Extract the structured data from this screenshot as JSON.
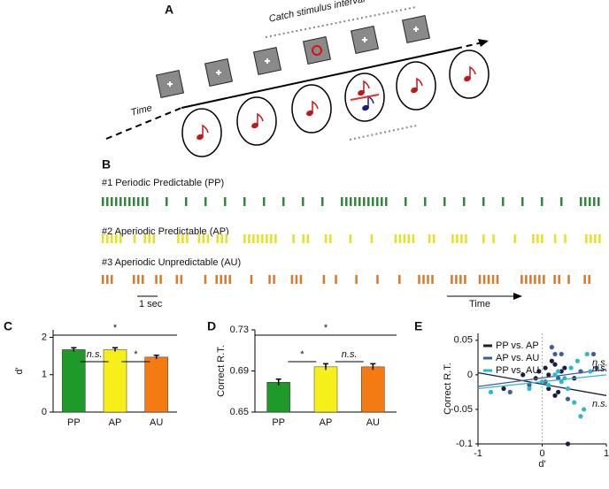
{
  "panel_labels": [
    "A",
    "B",
    "C",
    "D",
    "E"
  ],
  "panel_a": {
    "catch_label": "Catch stimulus interval",
    "time_label": "Time"
  },
  "panel_b": {
    "rows": [
      "#1 Periodic Predictable (PP)",
      "#2 Aperiodic Predictable (AP)",
      "#3 Aperiodic Unpredictable (AU)"
    ],
    "scale_label": "1 sec",
    "time_label": "Time"
  },
  "chart_data": [
    {
      "type": "bar",
      "ylabel": "d′",
      "categories": [
        "PP",
        "AP",
        "AU"
      ],
      "values": [
        1.67,
        1.67,
        1.47
      ],
      "errors": [
        0.05,
        0.05,
        0.05
      ],
      "colors": [
        "#1f9a2a",
        "#f7ef1a",
        "#f47a12"
      ],
      "ylim": [
        0,
        2.2
      ],
      "yticks": [
        0,
        1,
        2
      ],
      "annotations": [
        {
          "text": "*",
          "from": "PP",
          "to": "AU"
        },
        {
          "text": "n.s.",
          "from": "PP",
          "to": "AP"
        },
        {
          "text": "*",
          "from": "AP",
          "to": "AU"
        }
      ]
    },
    {
      "type": "bar",
      "ylabel": "Correct R.T.",
      "categories": [
        "PP",
        "AP",
        "AU"
      ],
      "values": [
        0.679,
        0.694,
        0.694
      ],
      "errors": [
        0.003,
        0.003,
        0.003
      ],
      "colors": [
        "#1f9a2a",
        "#f7ef1a",
        "#f47a12"
      ],
      "ylim": [
        0.65,
        0.73
      ],
      "yticks": [
        0.65,
        0.69,
        0.73
      ],
      "annotations": [
        {
          "text": "*",
          "from": "PP",
          "to": "AU"
        },
        {
          "text": "*",
          "from": "PP",
          "to": "AP"
        },
        {
          "text": "n.s.",
          "from": "AP",
          "to": "AU"
        }
      ]
    },
    {
      "type": "scatter",
      "xlabel": "d′",
      "ylabel": "Correct R.T.",
      "xlim": [
        -1,
        1
      ],
      "xticks": [
        -1,
        0,
        1
      ],
      "ylim": [
        -0.1,
        0.06
      ],
      "yticks": [
        0.05,
        0,
        -0.05,
        -0.1
      ],
      "series": [
        {
          "name": "PP vs. AP",
          "color": "#1b1f3b",
          "annotation": "n.s.",
          "x": [
            -0.6,
            -0.3,
            -0.1,
            0.05,
            0.1,
            0.15,
            0.2,
            0.25,
            0.3,
            0.35,
            0.4,
            0.5,
            0.2,
            -0.05,
            0.1
          ],
          "y": [
            -0.02,
            0,
            -0.005,
            0.01,
            -0.02,
            0.02,
            0.015,
            -0.025,
            0.005,
            0.01,
            -0.1,
            -0.005,
            -0.03,
            0.005,
            0
          ],
          "fit": {
            "x": [
              -1,
              1
            ],
            "y": [
              0.003,
              -0.03
            ]
          }
        },
        {
          "name": "AP vs. AU",
          "color": "#3b5c9e",
          "annotation": "n.s.",
          "x": [
            -0.5,
            0.15,
            0.2,
            0.3,
            0.05,
            0.6,
            0.8,
            0.85,
            0.25,
            -0.2,
            0.4
          ],
          "y": [
            -0.025,
            0.04,
            0.03,
            0.03,
            -0.01,
            0.005,
            0.03,
            0.01,
            -0.005,
            -0.015,
            -0.035
          ],
          "fit": {
            "x": [
              -1,
              1
            ],
            "y": [
              -0.017,
              0.008
            ]
          }
        },
        {
          "name": "PP vs. AU",
          "color": "#2fb8cc",
          "annotation": "n.s.",
          "x": [
            -0.8,
            -0.2,
            0,
            0.1,
            0.2,
            0.3,
            0.4,
            0.5,
            0.55,
            0.6,
            0.65,
            0.7,
            0.75,
            0.35,
            0.45,
            0.25
          ],
          "y": [
            -0.025,
            -0.02,
            -0.01,
            -0.015,
            0,
            -0.01,
            -0.02,
            -0.04,
            0.02,
            -0.06,
            -0.05,
            0.03,
            0.005,
            -0.005,
            0.01,
            0.005
          ],
          "fit": {
            "x": [
              -1,
              1
            ],
            "y": [
              -0.02,
              0
            ]
          }
        }
      ]
    }
  ]
}
